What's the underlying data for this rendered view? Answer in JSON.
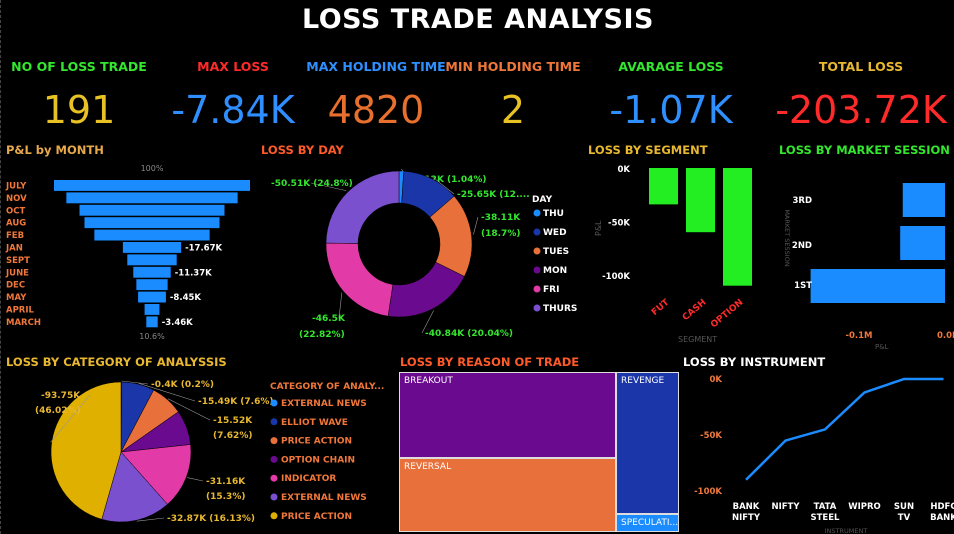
{
  "title": "LOSS TRADE ANALYSIS",
  "kpis": [
    {
      "label": "NO OF LOSS TRADE",
      "value": "191",
      "label_color": "#33e62e",
      "value_color": "#e8c124"
    },
    {
      "label": "MAX LOSS",
      "value": "-7.84K",
      "label_color": "#ff2a2a",
      "value_color": "#2f8fff"
    },
    {
      "label": "MAX HOLDING TIME",
      "value": "4820",
      "label_color": "#2f8fff",
      "value_color": "#e8702f"
    },
    {
      "label": "MIN HOLDING TIME",
      "value": "2",
      "label_color": "#f0773a",
      "value_color": "#e8c124"
    },
    {
      "label": "AVARAGE LOSS",
      "value": "-1.07K",
      "label_color": "#33e62e",
      "value_color": "#2f8fff"
    },
    {
      "label": "TOTAL LOSS",
      "value": "-203.72K",
      "label_color": "#e8b830",
      "value_color": "#ff2a2a"
    }
  ],
  "sections": {
    "pnl_month": "P&L by MONTH",
    "loss_day": "LOSS BY DAY",
    "loss_segment": "LOSS BY SEGMENT",
    "loss_session": "LOSS BY MARKET SESSION",
    "loss_category": "LOSS BY CATEGORY OF ANALYSSIS",
    "loss_reason": "LOSS BY REASON OF TRADE",
    "loss_instrument": "LOSS BY INSTRUMENT"
  },
  "chart_data": [
    {
      "id": "pnl_month",
      "type": "funnel",
      "categories": [
        "JULY",
        "NOV",
        "OCT",
        "AUG",
        "FEB",
        "JAN",
        "SEPT",
        "JUNE",
        "DEC",
        "MAY",
        "APRIL",
        "MARCH"
      ],
      "values": [
        -59.5,
        -52,
        -44,
        -41,
        -35,
        -17.67,
        -15,
        -11.37,
        -9.5,
        -8.45,
        -4.5,
        -3.46
      ],
      "data_labels": [
        "",
        "",
        "",
        "",
        "",
        "-17.67K",
        "",
        "-11.37K",
        "",
        "-8.45K",
        "",
        "-3.46K"
      ],
      "top_label": "100%",
      "bottom_label": "10.6%"
    },
    {
      "id": "loss_day",
      "type": "donut",
      "legend_title": "DAY",
      "slices": [
        {
          "name": "THU",
          "value": 2.12,
          "label": "-2.12K (1.04%)",
          "color": "#1a8cff"
        },
        {
          "name": "WED",
          "value": 25.65,
          "label": "-25.65K (12....",
          "color": "#1a36a8"
        },
        {
          "name": "TUES",
          "value": 38.11,
          "label": "-38.11K (18.7%)",
          "color": "#e8703a"
        },
        {
          "name": "MON",
          "value": 40.84,
          "label": "-40.84K (20.04%)",
          "color": "#6a0a8e"
        },
        {
          "name": "FRI",
          "value": 46.5,
          "label": "-46.5K (22.82%)",
          "color": "#e23aa6"
        },
        {
          "name": "THURS",
          "value": 50.51,
          "label": "-50.51K (24.8%)",
          "color": "#7a50cf"
        }
      ]
    },
    {
      "id": "loss_segment",
      "type": "bar",
      "categories": [
        "FUT",
        "CASH",
        "OPTION"
      ],
      "values": [
        -34,
        -60,
        -110
      ],
      "yticks": [
        "0K",
        "-50K",
        "-100K"
      ],
      "ylabel": "P&L",
      "xlabel": "SEGMENT",
      "color": "#22ee22"
    },
    {
      "id": "loss_session",
      "type": "bar-horizontal",
      "categories": [
        "3RD",
        "2ND",
        "1ST"
      ],
      "values": [
        -33,
        -35,
        -105
      ],
      "xticks": [
        "-0.1M",
        "0.0M"
      ],
      "xlabel": "P&L",
      "ylabel": "MARKET SESSION",
      "color": "#1a8cff"
    },
    {
      "id": "loss_category",
      "type": "pie",
      "legend_title": "CATEGORY OF ANALY...",
      "slices": [
        {
          "name": "EXTERNAL NEWS",
          "value": 0.4,
          "label": "-0.4K (0.2%)",
          "color": "#1a8cff"
        },
        {
          "name": "ELLIOT WAVE",
          "value": 15.49,
          "label": "-15.49K (7.6%)",
          "color": "#1a36a8"
        },
        {
          "name": "PRICE  ACTION",
          "value": 15.52,
          "label": "-15.52K (7.62%)",
          "color": "#e8703a"
        },
        {
          "name": "OPTION CHAIN",
          "value": 16.5,
          "label": "",
          "color": "#6a0a8e"
        },
        {
          "name": "INDICATOR",
          "value": 31.16,
          "label": "-31.16K (15.3%)",
          "color": "#e23aa6"
        },
        {
          "name": "EXTERNAL NEWS",
          "value": 32.87,
          "label": "-32.87K (16.13%)",
          "color": "#7a50cf"
        },
        {
          "name": "PRICE ACTION",
          "value": 93.75,
          "label": "-93.75K (46.02%)",
          "color": "#e0b000"
        }
      ]
    },
    {
      "id": "loss_reason",
      "type": "treemap",
      "items": [
        {
          "name": "BREAKOUT",
          "value": 84,
          "color": "#6a0a8e"
        },
        {
          "name": "REVERSAL",
          "value": 72,
          "color": "#e8703a"
        },
        {
          "name": "REVENGE",
          "value": 40,
          "color": "#1a36a8"
        },
        {
          "name": "SPECULATI...",
          "value": 5,
          "color": "#1a8cff"
        }
      ]
    },
    {
      "id": "loss_instrument",
      "type": "line",
      "categories": [
        "BANK NIFTY",
        "NIFTY",
        "TATA STEEL",
        "WIPRO",
        "SUN TV",
        "HDFC BANK"
      ],
      "values": [
        -90,
        -55,
        -45,
        -12,
        0,
        0
      ],
      "yticks": [
        "0K",
        "-50K",
        "-100K"
      ],
      "xlabel": "INSTRUMENT",
      "ylim": [
        -100,
        0
      ],
      "color": "#1a8cff"
    }
  ]
}
